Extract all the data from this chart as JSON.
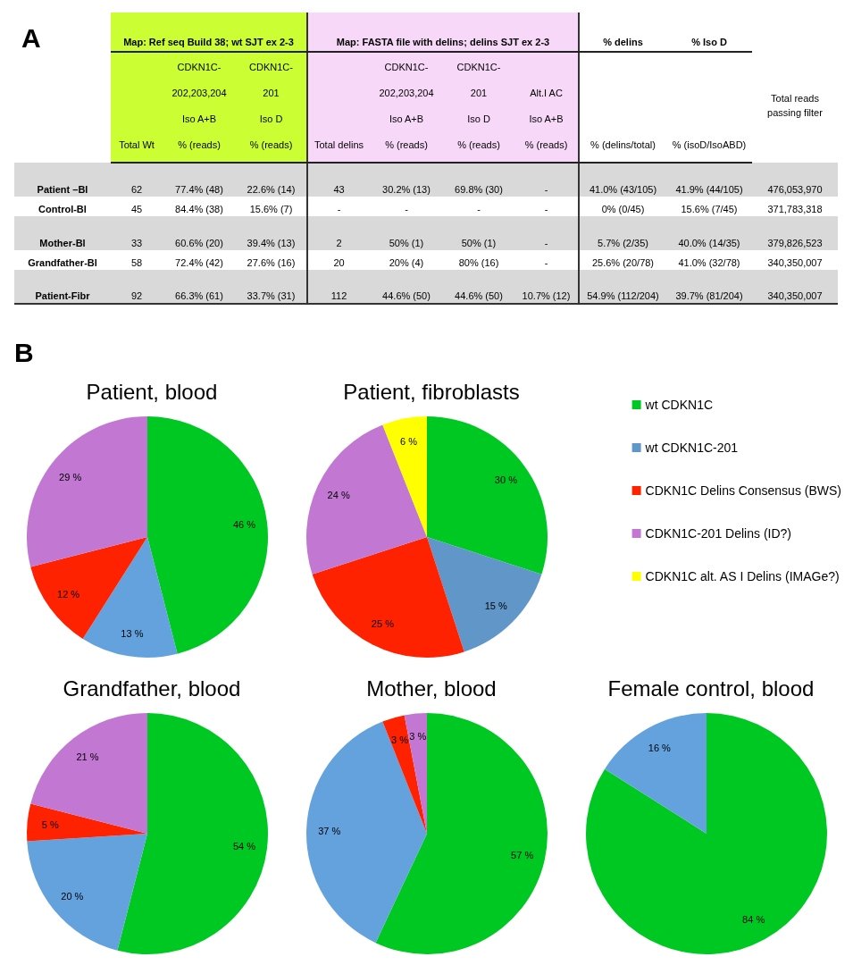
{
  "chart_data": [
    {
      "type": "other",
      "title": "A",
      "annotations": [
        "Map: Ref seq Build 38; wt SJT ex 2-3",
        "Map: FASTA file with delins; delins SJT ex 2-3",
        "% delins",
        "% Iso D",
        "Total Wt",
        "CDKN1C-\n202,203,204\nIso A+B\n% (reads)",
        "CDKN1C-\n201\nIso D\n% (reads)",
        "Total delins",
        "CDKN1C-\n202,203,204\nIso A+B\n% (reads)",
        "CDKN1C-\n201\nIso D\n% (reads)",
        "Alt.I AC\nIso A+B\n% (reads)",
        "% (delins/total)",
        "% (isoD/IsoABD)",
        "Total reads\npassing filter",
        "Patient –Bl",
        "62",
        "77.4% (48)",
        "22.6% (14)",
        "43",
        "30.2% (13)",
        "69.8% (30)",
        "-",
        "41.0% (43/105)",
        "41.9% (44/105)",
        "476,053,970",
        "Control-Bl",
        "45",
        "84.4% (38)",
        "15.6% (7)",
        "-",
        "-",
        "-",
        "-",
        "0% (0/45)",
        "15.6% (7/45)",
        "371,783,318",
        "Mother-Bl",
        "33",
        "60.6% (20)",
        "39.4% (13)",
        "2",
        "50% (1)",
        "50% (1)",
        "-",
        "5.7% (2/35)",
        "40.0% (14/35)",
        "379,826,523",
        "Grandfather-Bl",
        "58",
        "72.4% (42)",
        "27.6% (16)",
        "20",
        "20% (4)",
        "80% (16)",
        "-",
        "25.6% (20/78)",
        "41.0% (32/78)",
        "340,350,007",
        "Patient-Fibr",
        "92",
        "66.3% (61)",
        "33.7% (31)",
        "112",
        "44.6% (50)",
        "44.6% (50)",
        "10.7% (12)",
        "54.9% (112/204)",
        "39.7% (81/204)",
        "340,350,007"
      ]
    },
    {
      "type": "pie",
      "title": "Patient, blood",
      "annotations": [
        "B"
      ],
      "categories": [
        null,
        null,
        null,
        null
      ],
      "values": [
        46,
        13,
        12,
        29
      ],
      "colors": [
        "#00c823",
        "#64a2de",
        "#ff2200",
        "#c278d2"
      ],
      "value_labels": [
        "46 %",
        "13 %",
        "12 %",
        "29 %"
      ]
    },
    {
      "type": "pie",
      "title": "Patient, fibroblasts",
      "legend": "right",
      "categories": [
        "wt CDKN1C",
        "wt CDKN1C-201",
        "CDKN1C Delins Consensus (BWS)",
        "CDKN1C-201 Delins (ID?)",
        "CDKN1C alt. AS I Delins (IMAGe?)"
      ],
      "values": [
        30,
        15,
        25,
        24,
        6
      ],
      "colors": [
        "#00c823",
        "#6096c8",
        "#ff2200",
        "#c278d2",
        "#ffff00"
      ],
      "value_labels": [
        "30 %",
        "15 %",
        "25 %",
        "24 %",
        "6 %"
      ]
    },
    {
      "type": "pie",
      "title": "Grandfather, blood",
      "categories": [
        null,
        null,
        null,
        null
      ],
      "values": [
        54,
        20,
        5,
        21
      ],
      "colors": [
        "#00c823",
        "#64a2de",
        "#ff2200",
        "#c278d2"
      ],
      "value_labels": [
        "54 %",
        "20 %",
        "5 %",
        "21 %"
      ]
    },
    {
      "type": "pie",
      "title": "Mother, blood",
      "categories": [
        null,
        null,
        null,
        null
      ],
      "values": [
        57,
        37,
        3,
        3
      ],
      "colors": [
        "#00c823",
        "#64a2de",
        "#ff2200",
        "#c278d2"
      ],
      "value_labels": [
        "57 %",
        "37 %",
        "3 %",
        "3 %"
      ]
    },
    {
      "type": "pie",
      "title": "Female control, blood",
      "categories": [
        null,
        null
      ],
      "values": [
        84,
        16
      ],
      "colors": [
        "#00c823",
        "#64a2de"
      ],
      "value_labels": [
        "84 %",
        "16 %"
      ]
    }
  ]
}
